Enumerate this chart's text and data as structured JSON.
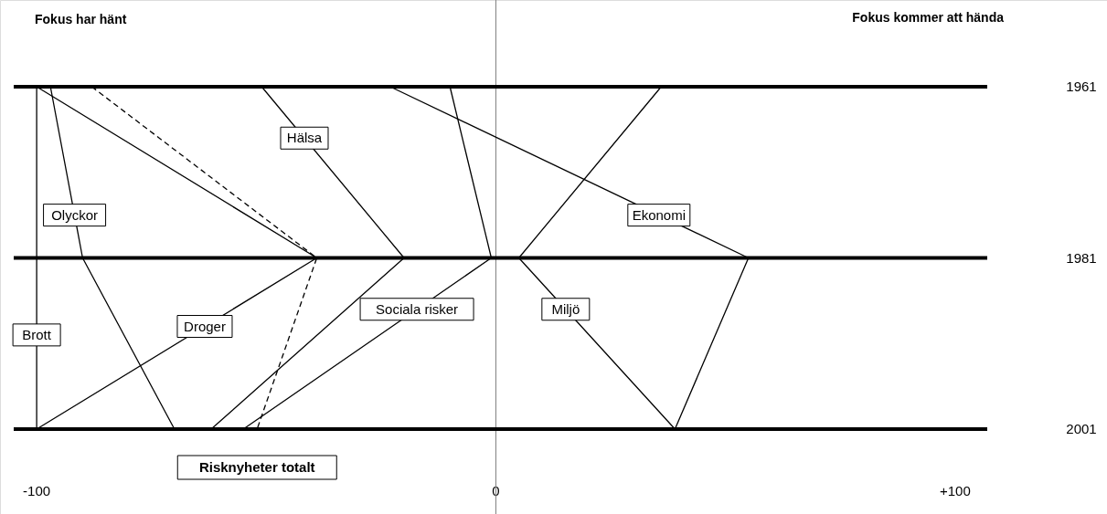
{
  "chart_data": {
    "type": "line",
    "annotations": [
      "Fokus har hänt",
      "Fokus kommer att hända"
    ],
    "xlim": [
      -105,
      107
    ],
    "xticks": [
      -100,
      0,
      {
        "value": 100,
        "label": "+100"
      }
    ],
    "ylim": [
      2001,
      1961
    ],
    "yticks": [
      1961,
      1981,
      2001
    ],
    "legend": false,
    "ref_lines": [
      {
        "axis": "x",
        "value": 0,
        "color": "#808080"
      },
      {
        "axis": "y",
        "value": 1961,
        "color": "#000000"
      },
      {
        "axis": "y",
        "value": 1981,
        "color": "#000000"
      },
      {
        "axis": "y",
        "value": 2001,
        "color": "#000000"
      }
    ],
    "series": [
      {
        "name": "Brott",
        "color": "#000000",
        "x": [
          -100,
          -100,
          -100
        ],
        "values": [
          1961,
          1981,
          2001
        ]
      },
      {
        "name": "Olyckor",
        "color": "#000000",
        "x": [
          -97,
          -90,
          -70
        ],
        "values": [
          1961,
          1981,
          2001
        ]
      },
      {
        "name": "Droger",
        "color": "#000000",
        "x": [
          -100,
          -39,
          -100
        ],
        "values": [
          1961,
          1981,
          2001
        ]
      },
      {
        "name": "Risknyheter totalt",
        "color": "#000000",
        "line_style": "dashed",
        "x": [
          -88,
          -39,
          -52
        ],
        "values": [
          1961,
          1981,
          2001
        ]
      },
      {
        "name": "Hälsa",
        "color": "#000000",
        "x": [
          -51,
          -20,
          -62
        ],
        "values": [
          1961,
          1981,
          2001
        ]
      },
      {
        "name": "Sociala risker",
        "color": "#000000",
        "x": [
          -10,
          -1,
          -55
        ],
        "values": [
          1961,
          1981,
          2001
        ]
      },
      {
        "name": "Ekonomi",
        "color": "#000000",
        "x": [
          -23,
          55,
          39
        ],
        "values": [
          1961,
          1981,
          2001
        ]
      },
      {
        "name": "Miljö",
        "color": "#000000",
        "x": [
          36,
          5,
          39
        ],
        "values": [
          1961,
          1981,
          2001
        ]
      }
    ]
  }
}
